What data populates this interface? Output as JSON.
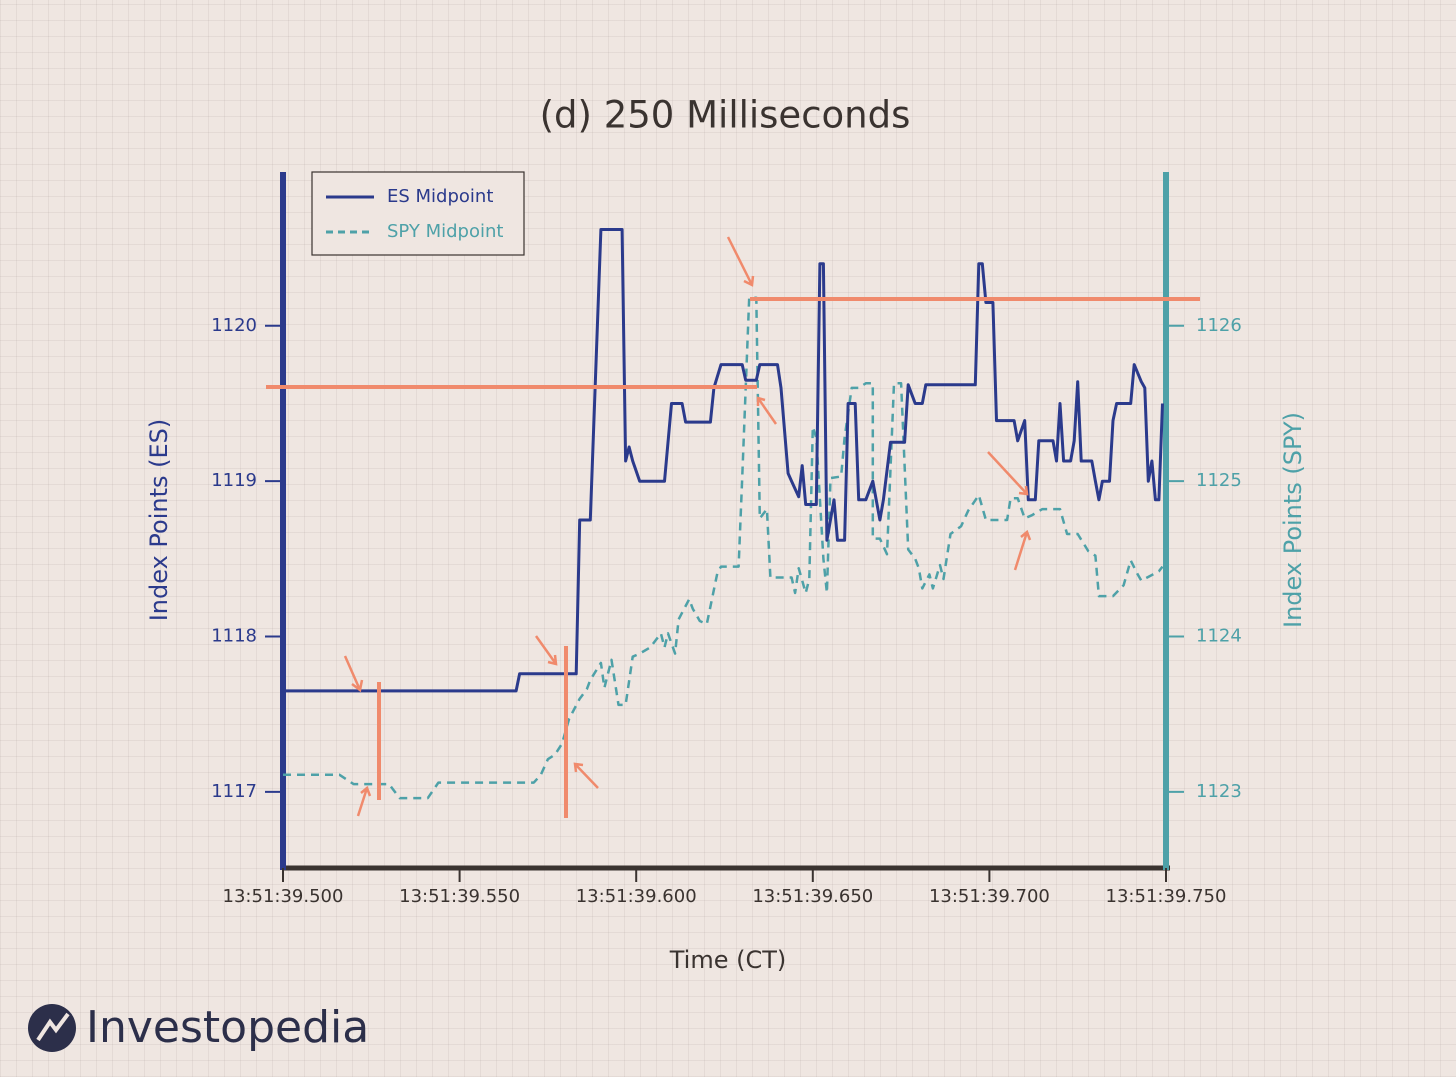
{
  "chart_data": {
    "type": "line",
    "title": "(d) 250 Milliseconds",
    "xlabel": "Time (CT)",
    "ylabel": "Index Points (ES)",
    "y2label": "Index Points (SPY)",
    "xlim": [
      "13:51:39.500",
      "13:51:39.750"
    ],
    "xticks": [
      "13:51:39.500",
      "13:51:39.550",
      "13:51:39.600",
      "13:51:39.650",
      "13:51:39.700",
      "13:51:39.750"
    ],
    "ylim": [
      1116.51,
      1120.99
    ],
    "yticks": [
      1117,
      1118,
      1119,
      1120
    ],
    "y2lim": [
      1122.51,
      1126.99
    ],
    "y2ticks": [
      1123,
      1124,
      1125,
      1126
    ],
    "legend": "upper left",
    "series": [
      {
        "name": "ES Midpoint",
        "color": "#2b3a8c",
        "style": "solid",
        "x": [
          "13:51:39.500",
          "13:51:39.566",
          "13:51:39.567",
          "13:51:39.583",
          "13:51:39.584",
          "13:51:39.587",
          "13:51:39.590",
          "13:51:39.596",
          "13:51:39.597",
          "13:51:39.598",
          "13:51:39.599",
          "13:51:39.601",
          "13:51:39.608",
          "13:51:39.610",
          "13:51:39.613",
          "13:51:39.614",
          "13:51:39.621",
          "13:51:39.622",
          "13:51:39.624",
          "13:51:39.630",
          "13:51:39.631",
          "13:51:39.634",
          "13:51:39.635",
          "13:51:39.640",
          "13:51:39.641",
          "13:51:39.643",
          "13:51:39.644",
          "13:51:39.646",
          "13:51:39.647",
          "13:51:39.648",
          "13:51:39.651",
          "13:51:39.652",
          "13:51:39.653",
          "13:51:39.654",
          "13:51:39.656",
          "13:51:39.657",
          "13:51:39.659",
          "13:51:39.660",
          "13:51:39.662",
          "13:51:39.663",
          "13:51:39.665",
          "13:51:39.667",
          "13:51:39.669",
          "13:51:39.670",
          "13:51:39.672",
          "13:51:39.676",
          "13:51:39.677",
          "13:51:39.679",
          "13:51:39.681",
          "13:51:39.682",
          "13:51:39.696",
          "13:51:39.697",
          "13:51:39.698",
          "13:51:39.699",
          "13:51:39.701",
          "13:51:39.702",
          "13:51:39.707",
          "13:51:39.708",
          "13:51:39.710",
          "13:51:39.711",
          "13:51:39.713",
          "13:51:39.714",
          "13:51:39.718",
          "13:51:39.719",
          "13:51:39.720",
          "13:51:39.721",
          "13:51:39.723",
          "13:51:39.724",
          "13:51:39.725",
          "13:51:39.726",
          "13:51:39.729",
          "13:51:39.730",
          "13:51:39.731",
          "13:51:39.732",
          "13:51:39.734",
          "13:51:39.735",
          "13:51:39.736",
          "13:51:39.740",
          "13:51:39.741",
          "13:51:39.743",
          "13:51:39.744",
          "13:51:39.745",
          "13:51:39.746",
          "13:51:39.747",
          "13:51:39.748",
          "13:51:39.749"
        ],
        "values": [
          1117.65,
          1117.65,
          1117.76,
          1117.76,
          1118.75,
          1118.75,
          1120.62,
          1120.62,
          1119.13,
          1119.22,
          1119.13,
          1119.0,
          1119.0,
          1119.5,
          1119.5,
          1119.38,
          1119.38,
          1119.6,
          1119.75,
          1119.75,
          1119.65,
          1119.65,
          1119.75,
          1119.75,
          1119.6,
          1119.05,
          1119.0,
          1118.9,
          1119.1,
          1118.85,
          1118.85,
          1120.4,
          1120.4,
          1118.62,
          1118.88,
          1118.62,
          1118.62,
          1119.5,
          1119.5,
          1118.88,
          1118.88,
          1119.0,
          1118.75,
          1118.88,
          1119.25,
          1119.25,
          1119.62,
          1119.5,
          1119.5,
          1119.62,
          1119.62,
          1120.4,
          1120.4,
          1120.15,
          1120.15,
          1119.39,
          1119.39,
          1119.26,
          1119.39,
          1118.88,
          1118.88,
          1119.26,
          1119.26,
          1119.13,
          1119.5,
          1119.13,
          1119.13,
          1119.26,
          1119.64,
          1119.13,
          1119.13,
          1119.0,
          1118.88,
          1119.0,
          1119.0,
          1119.39,
          1119.5,
          1119.5,
          1119.75,
          1119.64,
          1119.6,
          1119.0,
          1119.13,
          1118.88,
          1118.88,
          1119.5
        ]
      },
      {
        "name": "SPY Midpoint",
        "color": "#4ea1a8",
        "style": "dashed",
        "axis": "y2",
        "x": [
          "13:51:39.500",
          "13:51:39.516",
          "13:51:39.520",
          "13:51:39.530",
          "13:51:39.533",
          "13:51:39.541",
          "13:51:39.544",
          "13:51:39.571",
          "13:51:39.573",
          "13:51:39.575",
          "13:51:39.577",
          "13:51:39.579",
          "13:51:39.581",
          "13:51:39.584",
          "13:51:39.586",
          "13:51:39.587",
          "13:51:39.590",
          "13:51:39.591",
          "13:51:39.593",
          "13:51:39.595",
          "13:51:39.597",
          "13:51:39.599",
          "13:51:39.601",
          "13:51:39.604",
          "13:51:39.607",
          "13:51:39.608",
          "13:51:39.609",
          "13:51:39.611",
          "13:51:39.612",
          "13:51:39.615",
          "13:51:39.616",
          "13:51:39.618",
          "13:51:39.620",
          "13:51:39.623",
          "13:51:39.624",
          "13:51:39.629",
          "13:51:39.630",
          "13:51:39.632",
          "13:51:39.634",
          "13:51:39.635",
          "13:51:39.637",
          "13:51:39.638",
          "13:51:39.644",
          "13:51:39.645",
          "13:51:39.646",
          "13:51:39.648",
          "13:51:39.649",
          "13:51:39.650",
          "13:51:39.651",
          "13:51:39.653",
          "13:51:39.654",
          "13:51:39.655",
          "13:51:39.658",
          "13:51:39.659",
          "13:51:39.661",
          "13:51:39.663",
          "13:51:39.665",
          "13:51:39.667",
          "13:51:39.667",
          "13:51:39.669",
          "13:51:39.671",
          "13:51:39.673",
          "13:51:39.675",
          "13:51:39.677",
          "13:51:39.679",
          "13:51:39.680",
          "13:51:39.681",
          "13:51:39.683",
          "13:51:39.684",
          "13:51:39.686",
          "13:51:39.687",
          "13:51:39.689",
          "13:51:39.692",
          "13:51:39.694",
          "13:51:39.697",
          "13:51:39.699",
          "13:51:39.705",
          "13:51:39.706",
          "13:51:39.708",
          "13:51:39.710",
          "13:51:39.712",
          "13:51:39.715",
          "13:51:39.720",
          "13:51:39.722",
          "13:51:39.725",
          "13:51:39.728",
          "13:51:39.730",
          "13:51:39.731",
          "13:51:39.735",
          "13:51:39.738",
          "13:51:39.740",
          "13:51:39.742",
          "13:51:39.743",
          "13:51:39.748",
          "13:51:39.749"
        ],
        "values": [
          1123.11,
          1123.11,
          1123.05,
          1123.05,
          1122.96,
          1122.96,
          1123.06,
          1123.06,
          1123.11,
          1123.21,
          1123.24,
          1123.31,
          1123.47,
          1123.6,
          1123.66,
          1123.72,
          1123.83,
          1123.67,
          1123.85,
          1123.56,
          1123.56,
          1123.87,
          1123.89,
          1123.93,
          1124.02,
          1123.93,
          1124.02,
          1123.89,
          1124.11,
          1124.24,
          1124.18,
          1124.1,
          1124.08,
          1124.41,
          1124.45,
          1124.45,
          1125.02,
          1126.18,
          1126.18,
          1124.76,
          1124.82,
          1124.38,
          1124.38,
          1124.28,
          1124.44,
          1124.28,
          1124.37,
          1125.35,
          1125.28,
          1124.5,
          1124.28,
          1125.02,
          1125.03,
          1125.28,
          1125.6,
          1125.6,
          1125.63,
          1125.63,
          1124.63,
          1124.63,
          1124.53,
          1125.63,
          1125.63,
          1124.56,
          1124.5,
          1124.44,
          1124.31,
          1124.4,
          1124.31,
          1124.46,
          1124.37,
          1124.66,
          1124.71,
          1124.81,
          1124.91,
          1124.75,
          1124.75,
          1124.89,
          1124.89,
          1124.76,
          1124.78,
          1124.82,
          1124.82,
          1124.66,
          1124.66,
          1124.55,
          1124.52,
          1124.26,
          1124.26,
          1124.33,
          1124.49,
          1124.4,
          1124.36,
          1124.42,
          1124.45
        ]
      }
    ]
  },
  "logo": {
    "text": "Investopedia"
  }
}
